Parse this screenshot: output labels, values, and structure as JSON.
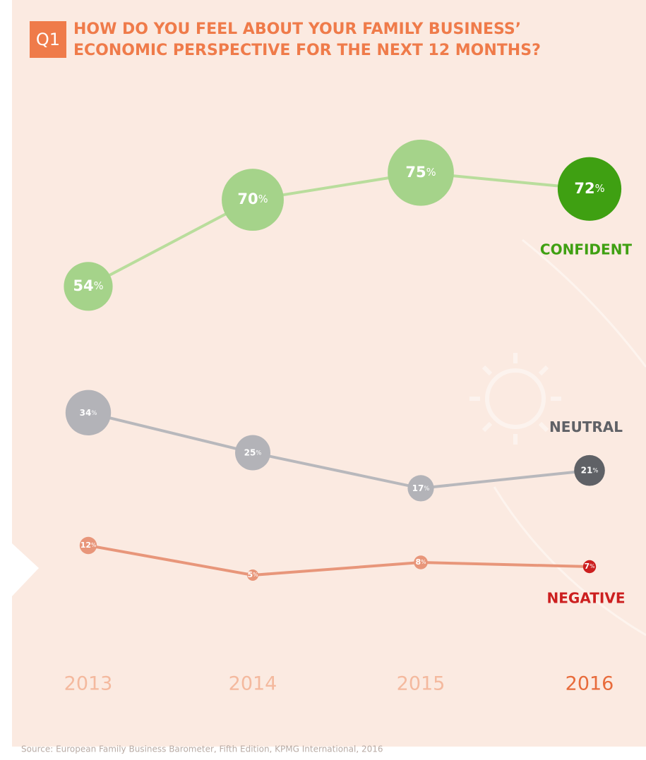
{
  "chart_data": {
    "type": "line",
    "question_number": "Q1",
    "title": [
      "HOW DO YOU FEEL ABOUT YOUR FAMILY BUSINESS’",
      "ECONOMIC PERSPECTIVE FOR THE NEXT 12 MONTHS?"
    ],
    "categories": [
      "2013",
      "2014",
      "2015",
      "2016"
    ],
    "series": [
      {
        "name": "CONFIDENT",
        "color": "#a5d38a",
        "line_color": "#b9dd9c",
        "last_color": "#3fa012",
        "values": [
          54,
          70,
          75,
          72
        ],
        "value_labels": [
          "54%",
          "70%",
          "75%",
          "72%"
        ]
      },
      {
        "name": "NEUTRAL",
        "color": "#b3b3b8",
        "line_color": "#b8b8bc",
        "last_color": "#5f6166",
        "values": [
          34,
          25,
          17,
          21
        ],
        "value_labels": [
          "34%",
          "25%",
          "17%",
          "21%"
        ]
      },
      {
        "name": "NEGATIVE",
        "color": "#e8967a",
        "line_color": "#e8967a",
        "last_color": "#cc1f1f",
        "values": [
          12,
          5,
          8,
          7
        ],
        "value_labels": [
          "12%",
          "5%",
          "8%",
          "7%"
        ]
      }
    ],
    "source": "Source: European Family Business Barometer, Fifth Edition, KPMG International, 2016"
  }
}
